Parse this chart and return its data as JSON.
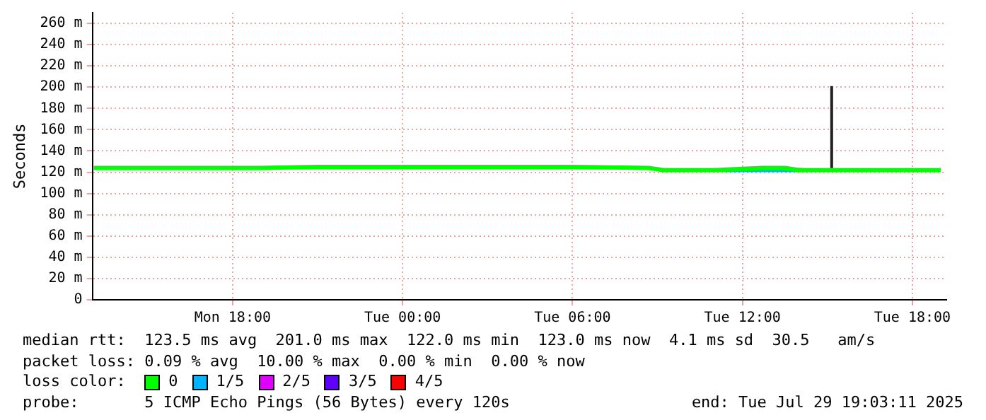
{
  "chart_data": {
    "type": "line",
    "ylabel": "Seconds",
    "legend_title": "loss color:",
    "legend": "bottom",
    "grid": true,
    "marker": "none",
    "line_style": "solid",
    "xlim": [
      "2025-07-28T13:03",
      "2025-07-29T19:12"
    ],
    "xticks": [
      {
        "value": "2025-07-28T18:00",
        "label": "Mon 18:00"
      },
      {
        "value": "2025-07-29T00:00",
        "label": "Tue 00:00"
      },
      {
        "value": "2025-07-29T06:00",
        "label": "Tue 06:00"
      },
      {
        "value": "2025-07-29T12:00",
        "label": "Tue 12:00"
      },
      {
        "value": "2025-07-29T18:00",
        "label": "Tue 18:00"
      }
    ],
    "ylim": [
      0,
      270
    ],
    "yticks": [
      0,
      {
        "value": 20,
        "label": "20 m"
      },
      {
        "value": 40,
        "label": "40 m"
      },
      {
        "value": 60,
        "label": "60 m"
      },
      {
        "value": 80,
        "label": "80 m"
      },
      {
        "value": 100,
        "label": "100 m"
      },
      {
        "value": 120,
        "label": "120 m"
      },
      {
        "value": 140,
        "label": "140 m"
      },
      {
        "value": 160,
        "label": "160 m"
      },
      {
        "value": 180,
        "label": "180 m"
      },
      {
        "value": 200,
        "label": "200 m"
      },
      {
        "value": 220,
        "label": "220 m"
      },
      {
        "value": 240,
        "label": "240 m"
      },
      {
        "value": 260,
        "label": "260 m"
      }
    ],
    "series": [
      {
        "name": "0",
        "color": "#00ff00",
        "x": [
          "2025-07-28T13:06",
          "2025-07-28T15:00",
          "2025-07-28T17:00",
          "2025-07-28T19:00",
          "2025-07-28T21:00",
          "2025-07-29T00:00",
          "2025-07-29T03:00",
          "2025-07-29T06:00",
          "2025-07-29T08:42",
          "2025-07-29T09:12",
          "2025-07-29T11:00",
          "2025-07-29T12:42",
          "2025-07-29T13:30",
          "2025-07-29T14:00",
          "2025-07-29T16:00",
          "2025-07-29T19:00"
        ],
        "values": [
          124,
          124,
          124,
          124,
          125,
          125,
          125,
          125,
          124,
          122,
          122,
          124,
          124,
          122,
          122,
          122
        ]
      },
      {
        "name": "1/5",
        "color": "#00b4ff",
        "x": [
          "2025-07-29T11:21",
          "2025-07-29T14:06"
        ],
        "values": [
          122,
          122
        ]
      },
      {
        "name": "2/5",
        "color": "#e000ff"
      },
      {
        "name": "3/5",
        "color": "#6000ff"
      },
      {
        "name": "4/5",
        "color": "#ff0000"
      },
      {
        "color": "#222222",
        "x": [
          "2025-07-29T15:09",
          "2025-07-29T15:09"
        ],
        "values": [
          122,
          201
        ]
      }
    ],
    "annotations": [
      "median rtt:  123.5 ms avg  201.0 ms max  122.0 ms min  123.0 ms now  4.1 ms sd  30.5   am/s",
      "packet loss: 0.09 % avg  10.00 % max  0.00 % min  0.00 % now",
      "probe:       5 ICMP Echo Pings (56 Bytes) every 120s",
      "end: Tue Jul 29 19:03:11 2025"
    ]
  }
}
